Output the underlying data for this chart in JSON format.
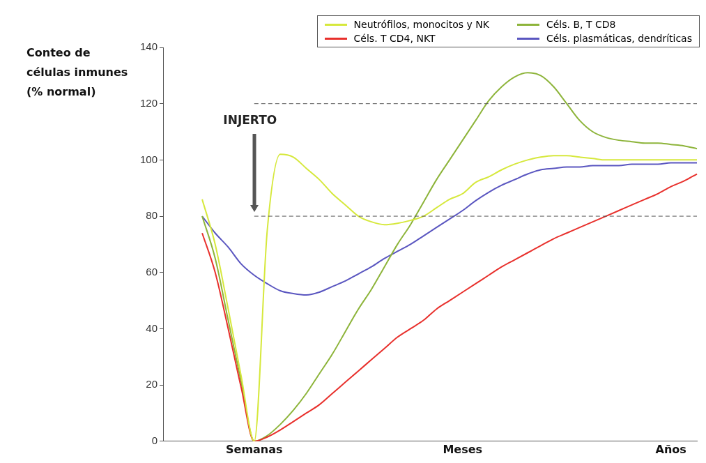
{
  "chart_data": {
    "type": "line",
    "ylabel": "Conteo de células inmunes (% normal)",
    "categories": [
      null,
      null,
      null,
      null,
      null,
      null,
      null,
      "Semanas",
      null,
      null,
      null,
      null,
      null,
      null,
      null,
      null,
      null,
      null,
      null,
      null,
      null,
      null,
      null,
      "Meses",
      null,
      null,
      null,
      null,
      null,
      null,
      null,
      null,
      null,
      null,
      null,
      null,
      null,
      null,
      null,
      "Años",
      null,
      null
    ],
    "ylim": [
      0,
      140
    ],
    "yticks": [
      0,
      20,
      40,
      60,
      80,
      100,
      120,
      140
    ],
    "grid": false,
    "legend": "top",
    "marker": "none",
    "line_style": "solid",
    "series": [
      {
        "name": "Neutrófilos, monocitos y NK",
        "color": "#d6e83c",
        "values": [
          null,
          null,
          null,
          86,
          70,
          47,
          23,
          0,
          75,
          102,
          101,
          97,
          93,
          88,
          84,
          80,
          78,
          77,
          77.5,
          78.5,
          80,
          83,
          86,
          88,
          92,
          94,
          96.5,
          98.5,
          100,
          101,
          101.5,
          101.5,
          101,
          100.5,
          100,
          100,
          100,
          100,
          100,
          100,
          100,
          100
        ]
      },
      {
        "name": "Céls. T CD4, NKT",
        "color": "#e8302c",
        "values": [
          null,
          null,
          null,
          74,
          60,
          40,
          19,
          0,
          1.5,
          4,
          7,
          10,
          13,
          17,
          21,
          25,
          29,
          33,
          37,
          40,
          43,
          47,
          50,
          53,
          56,
          59,
          62,
          64.5,
          67,
          69.5,
          72,
          74,
          76,
          78,
          80,
          82,
          84,
          86,
          88,
          90.5,
          92.5,
          95
        ]
      },
      {
        "name": "Céls. B, T CD8",
        "color": "#8db43a",
        "values": [
          null,
          null,
          null,
          80,
          65,
          43,
          21,
          0,
          2,
          6,
          11,
          17,
          24,
          31,
          39,
          47,
          54,
          62,
          70,
          77,
          85,
          93,
          100,
          107,
          114,
          121,
          126,
          129.5,
          131,
          130,
          126,
          120,
          114,
          110,
          108,
          107,
          106.5,
          106,
          106,
          105.5,
          105,
          104
        ]
      },
      {
        "name": "Céls. plasmáticas, dendríticas",
        "color": "#5a56c0",
        "values": [
          null,
          null,
          null,
          80,
          74,
          69,
          63,
          59,
          56,
          53.5,
          52.5,
          52,
          53,
          55,
          57,
          59.5,
          62,
          65,
          67.5,
          70,
          73,
          76,
          79,
          82,
          85.5,
          88.5,
          91,
          93,
          95,
          96.5,
          97,
          97.5,
          97.5,
          98,
          98,
          98,
          98.5,
          98.5,
          98.5,
          99,
          99,
          99
        ]
      }
    ],
    "ref_lines": [
      {
        "axis": "y",
        "value": 80,
        "line_style": "dashed",
        "color": "#555555"
      },
      {
        "axis": "y",
        "value": 120,
        "line_style": "dashed",
        "color": "#555555"
      }
    ],
    "annotations": [
      "INJERTO"
    ]
  }
}
